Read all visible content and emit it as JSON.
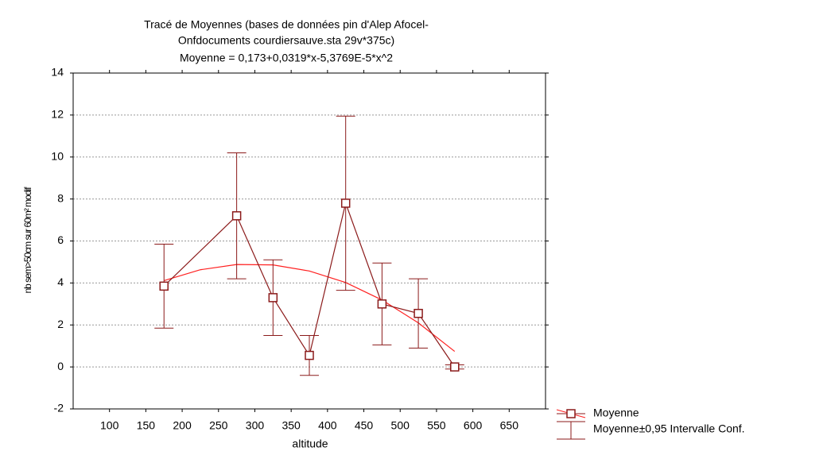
{
  "chart_data": {
    "type": "line",
    "title": [
      "Tracé de Moyennes (bases de données pin d'Alep Afocel-",
      "Onfdocuments courdiersauve.sta 29v*375c)",
      "Moyenne = 0,173+0,0319*x-5,3769E-5*x^2"
    ],
    "x_label": "altitude",
    "y_label": "nb sem>50cm sur 60m² modif",
    "x": [
      175,
      275,
      325,
      375,
      425,
      475,
      525,
      575
    ],
    "series": [
      {
        "name": "Moyenne",
        "color": "#8b1a1a",
        "values": [
          3.85,
          7.2,
          3.3,
          0.55,
          7.8,
          3.0,
          2.55,
          0
        ],
        "errors": [
          2.0,
          3.0,
          1.8,
          0.95,
          4.15,
          1.95,
          1.65,
          0.1
        ]
      }
    ],
    "error_legend": "Moyenne±0,95 Intervalle Conf.",
    "fit": {
      "color": "#ff2020",
      "x": [
        175,
        225,
        275,
        325,
        375,
        425,
        475,
        525,
        575
      ],
      "values": [
        4.11,
        4.63,
        4.88,
        4.86,
        4.57,
        4.02,
        3.19,
        2.1,
        0.74
      ]
    },
    "xlim": [
      50,
      700
    ],
    "ylim": [
      -2,
      14
    ],
    "xticks": [
      100,
      150,
      200,
      250,
      300,
      350,
      400,
      450,
      500,
      550,
      600,
      650
    ],
    "yticks": [
      -2,
      0,
      2,
      4,
      6,
      8,
      10,
      12,
      14
    ],
    "grid": true
  }
}
